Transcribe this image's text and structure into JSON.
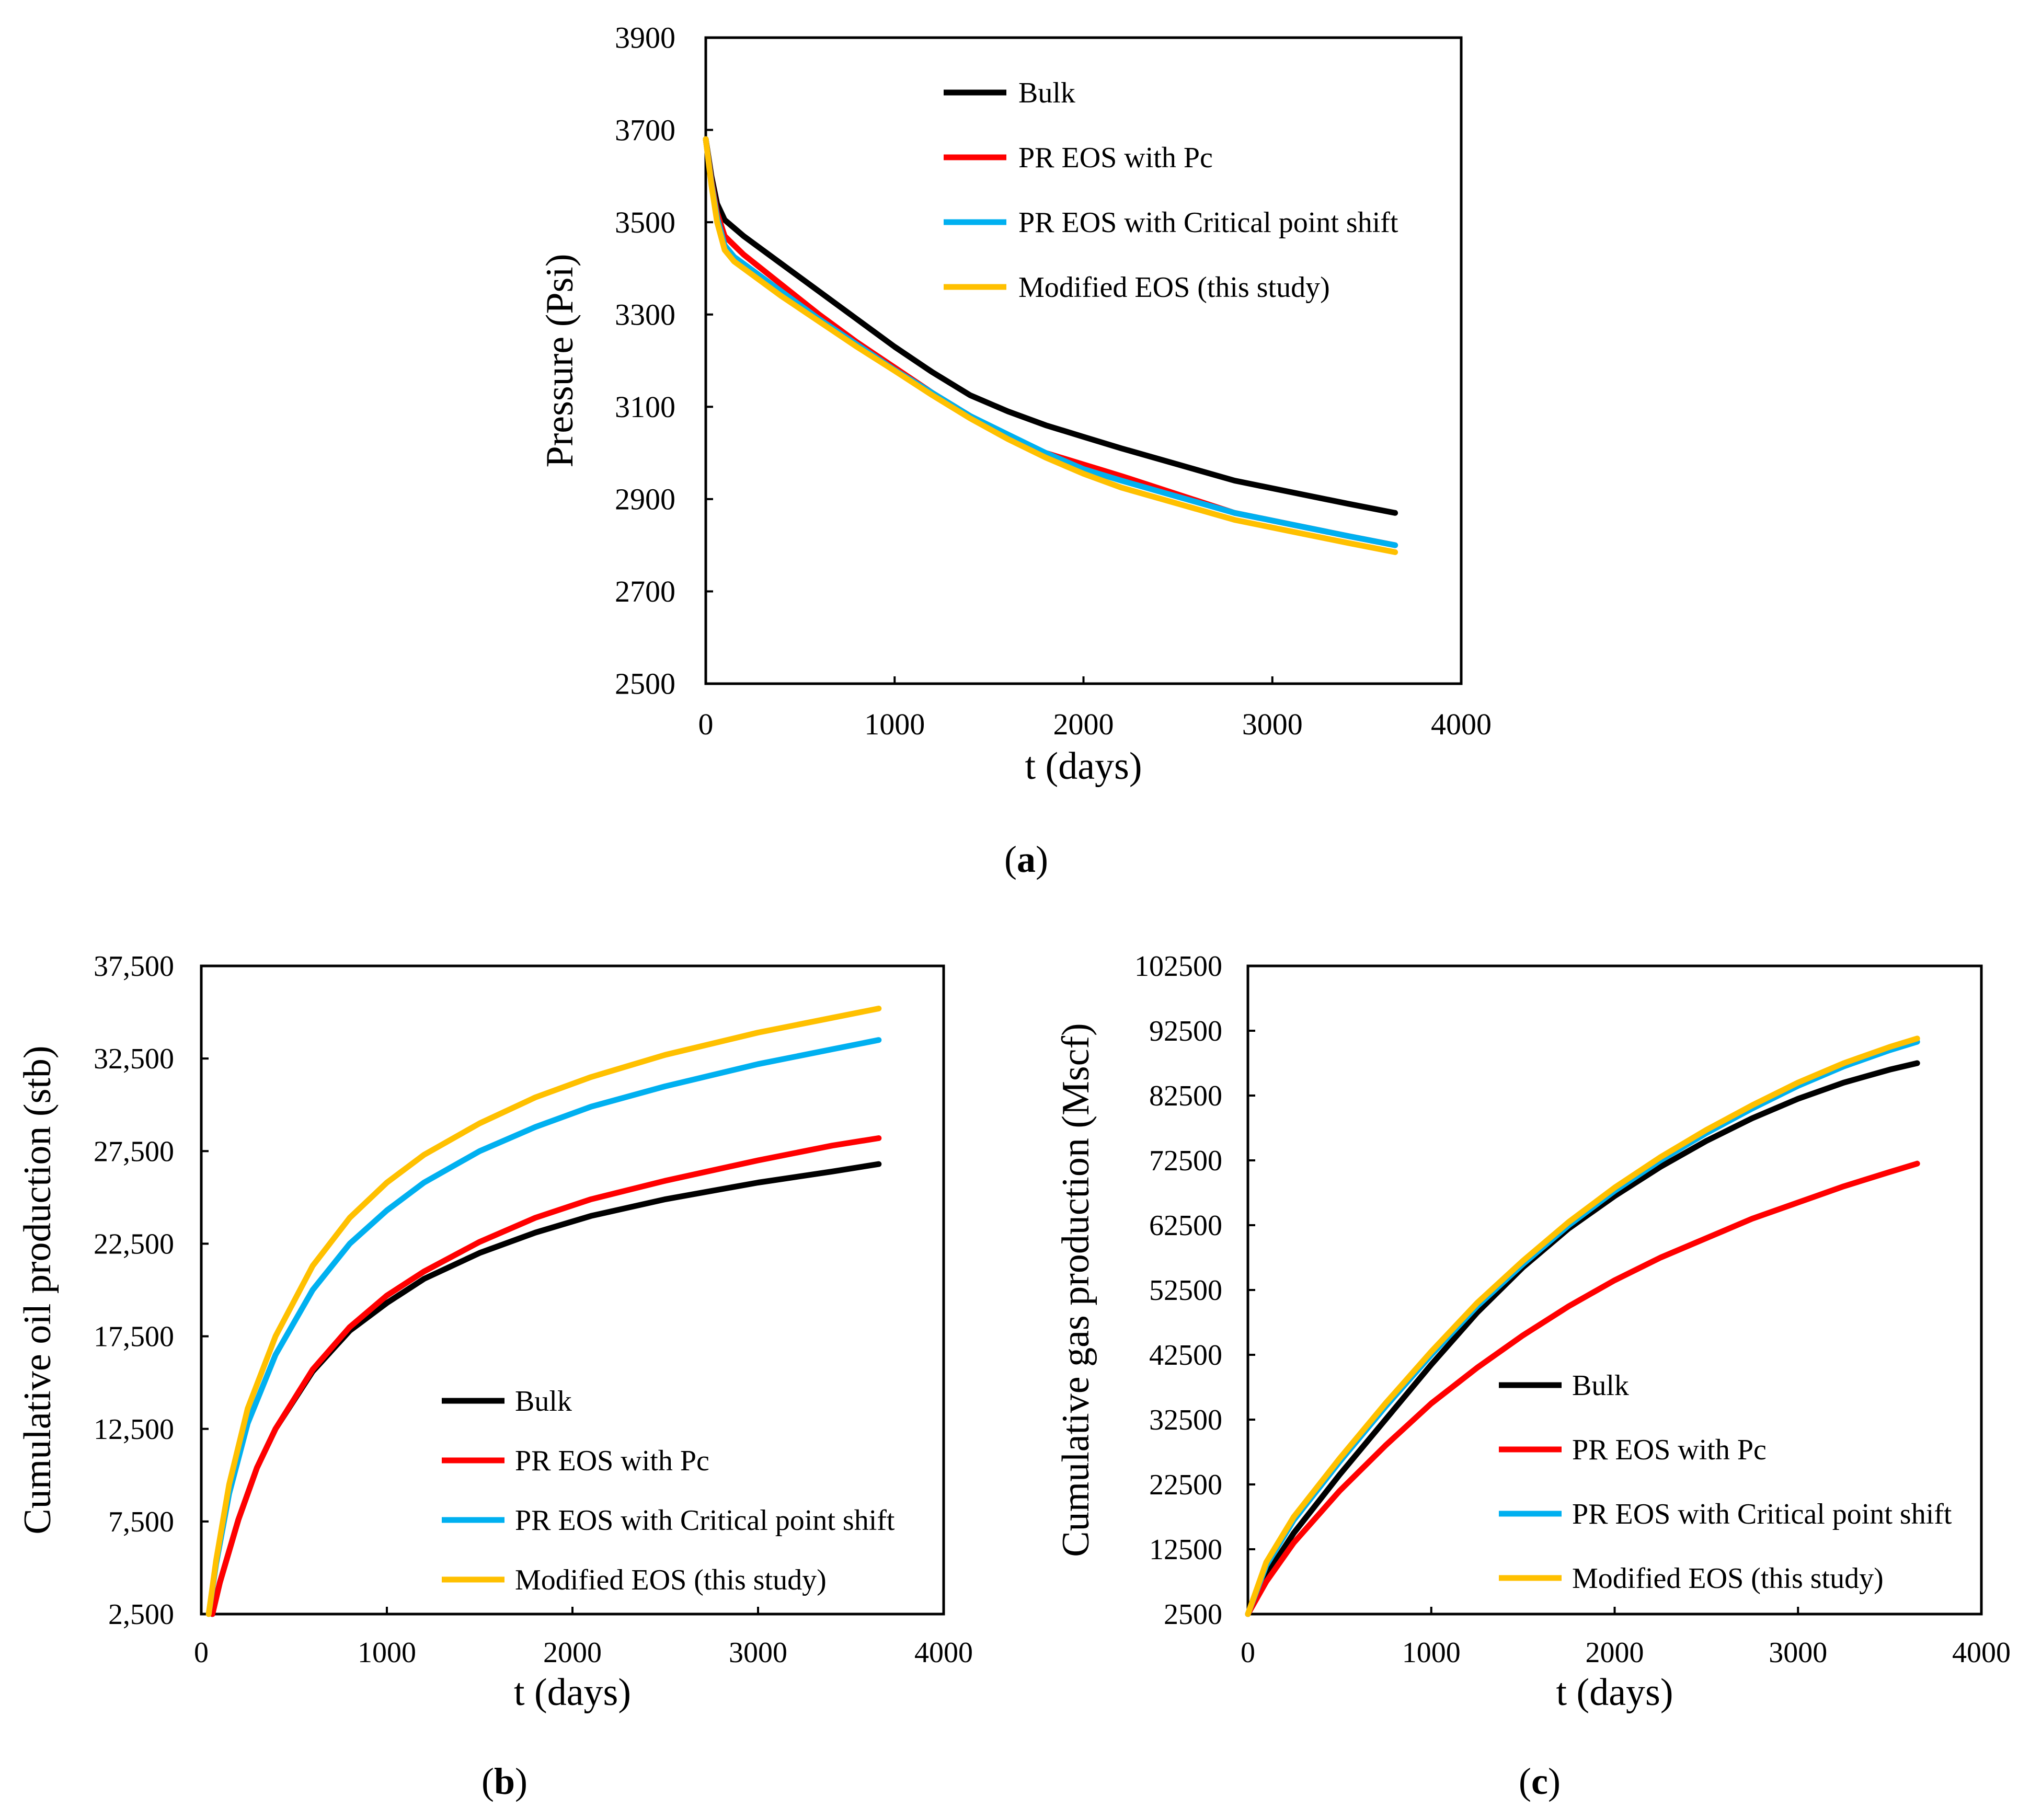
{
  "chart_data": [
    {
      "id": "a",
      "type": "line",
      "panel_label": "a",
      "xlabel": "t (days)",
      "ylabel": "Pressure (Psi)",
      "xlim": [
        0,
        4000
      ],
      "ylim": [
        2500,
        3900
      ],
      "xticks": [
        0,
        1000,
        2000,
        3000,
        4000
      ],
      "yticks": [
        2500,
        2700,
        2900,
        3100,
        3300,
        3500,
        3700,
        3900
      ],
      "xtick_labels": [
        "0",
        "1000",
        "2000",
        "3000",
        "4000"
      ],
      "ytick_labels": [
        "2500",
        "2700",
        "2900",
        "3100",
        "3300",
        "3500",
        "3700",
        "3900"
      ],
      "legend": "top-right",
      "series": [
        {
          "name": "Bulk",
          "color": "#000000",
          "x": [
            0,
            30,
            60,
            100,
            200,
            400,
            600,
            800,
            1000,
            1200,
            1400,
            1600,
            1800,
            2000,
            2200,
            2500,
            2800,
            3100,
            3400,
            3650
          ],
          "y": [
            3680,
            3600,
            3540,
            3505,
            3470,
            3410,
            3350,
            3290,
            3230,
            3175,
            3125,
            3090,
            3060,
            3035,
            3010,
            2975,
            2940,
            2915,
            2890,
            2870
          ]
        },
        {
          "name": "PR EOS with Pc",
          "color": "#ff0000",
          "x": [
            0,
            30,
            60,
            100,
            150,
            200,
            400,
            600,
            800,
            1000,
            1200,
            1400,
            1600,
            1800,
            2000,
            2200,
            2500,
            2800,
            3100,
            3400,
            3650
          ],
          "y": [
            3680,
            3590,
            3520,
            3470,
            3450,
            3430,
            3365,
            3300,
            3240,
            3185,
            3130,
            3080,
            3035,
            3000,
            2975,
            2950,
            2910,
            2870,
            2845,
            2820,
            2800
          ]
        },
        {
          "name": "PR EOS with Critical point shift",
          "color": "#00b0f0",
          "x": [
            0,
            30,
            60,
            100,
            150,
            200,
            400,
            600,
            800,
            1000,
            1200,
            1400,
            1600,
            1800,
            2000,
            2200,
            2500,
            2800,
            3100,
            3400,
            3650
          ],
          "y": [
            3680,
            3585,
            3510,
            3450,
            3425,
            3410,
            3350,
            3290,
            3235,
            3180,
            3130,
            3080,
            3040,
            3000,
            2965,
            2940,
            2905,
            2870,
            2845,
            2820,
            2800
          ]
        },
        {
          "name": "Modified EOS (this study)",
          "color": "#ffc000",
          "x": [
            0,
            30,
            60,
            100,
            150,
            200,
            400,
            600,
            800,
            1000,
            1200,
            1400,
            1600,
            1800,
            2000,
            2200,
            2500,
            2800,
            3100,
            3400,
            3650
          ],
          "y": [
            3680,
            3580,
            3500,
            3440,
            3415,
            3400,
            3340,
            3285,
            3230,
            3178,
            3125,
            3075,
            3030,
            2990,
            2955,
            2925,
            2890,
            2855,
            2830,
            2805,
            2785
          ]
        }
      ]
    },
    {
      "id": "b",
      "type": "line",
      "panel_label": "b",
      "xlabel": "t (days)",
      "ylabel": "Cumulative oil production (stb)",
      "xlim": [
        0,
        4000
      ],
      "ylim": [
        2500,
        37500
      ],
      "xticks": [
        0,
        1000,
        2000,
        3000,
        4000
      ],
      "yticks": [
        2500,
        7500,
        12500,
        17500,
        22500,
        27500,
        32500,
        37500
      ],
      "xtick_labels": [
        "0",
        "1000",
        "2000",
        "3000",
        "4000"
      ],
      "ytick_labels": [
        "2,500",
        "7,500",
        "12,500",
        "17,500",
        "22,500",
        "27,500",
        "32,500",
        "37,500"
      ],
      "legend": "center-right",
      "series": [
        {
          "name": "Bulk",
          "color": "#000000",
          "x": [
            60,
            100,
            200,
            300,
            400,
            600,
            800,
            1000,
            1200,
            1500,
            1800,
            2100,
            2500,
            3000,
            3400,
            3650
          ],
          "y": [
            2500,
            4200,
            7600,
            10400,
            12500,
            15600,
            17800,
            19300,
            20600,
            22000,
            23100,
            24000,
            24900,
            25800,
            26400,
            26800
          ]
        },
        {
          "name": "PR EOS with Pc",
          "color": "#ff0000",
          "x": [
            60,
            100,
            200,
            300,
            400,
            600,
            800,
            1000,
            1200,
            1500,
            1800,
            2100,
            2500,
            3000,
            3400,
            3650
          ],
          "y": [
            2500,
            4200,
            7600,
            10400,
            12500,
            15700,
            18000,
            19700,
            21000,
            22600,
            23900,
            24900,
            25900,
            27000,
            27800,
            28200
          ]
        },
        {
          "name": "PR EOS with Critical point shift",
          "color": "#00b0f0",
          "x": [
            40,
            80,
            150,
            250,
            400,
            600,
            800,
            1000,
            1200,
            1500,
            1800,
            2100,
            2500,
            3000,
            3400,
            3650
          ],
          "y": [
            2500,
            5200,
            9000,
            12800,
            16500,
            20000,
            22500,
            24300,
            25800,
            27500,
            28800,
            29900,
            31000,
            32200,
            33000,
            33500
          ]
        },
        {
          "name": "Modified EOS (this study)",
          "color": "#ffc000",
          "x": [
            40,
            80,
            150,
            250,
            400,
            600,
            800,
            1000,
            1200,
            1500,
            1800,
            2100,
            2500,
            3000,
            3400,
            3650
          ],
          "y": [
            2500,
            5400,
            9500,
            13600,
            17500,
            21300,
            23900,
            25800,
            27300,
            29000,
            30400,
            31500,
            32700,
            33900,
            34700,
            35200
          ]
        }
      ]
    },
    {
      "id": "c",
      "type": "line",
      "panel_label": "c",
      "xlabel": "t (days)",
      "ylabel": "Cumulative gas production (Mscf)",
      "xlim": [
        0,
        4000
      ],
      "ylim": [
        2500,
        102500
      ],
      "xticks": [
        0,
        1000,
        2000,
        3000,
        4000
      ],
      "yticks": [
        2500,
        12500,
        22500,
        32500,
        42500,
        52500,
        62500,
        72500,
        82500,
        92500,
        102500
      ],
      "xtick_labels": [
        "0",
        "1000",
        "2000",
        "3000",
        "4000"
      ],
      "ytick_labels": [
        "2500",
        "12500",
        "22500",
        "32500",
        "42500",
        "52500",
        "62500",
        "72500",
        "82500",
        "92500",
        "102500"
      ],
      "legend": "center-right",
      "series": [
        {
          "name": "Bulk",
          "color": "#000000",
          "x": [
            0,
            100,
            250,
            500,
            750,
            1000,
            1250,
            1500,
            1750,
            2000,
            2250,
            2500,
            2750,
            3000,
            3250,
            3500,
            3650
          ],
          "y": [
            2500,
            8500,
            15000,
            24000,
            32500,
            41000,
            49000,
            56000,
            62000,
            67000,
            71500,
            75500,
            79000,
            82000,
            84500,
            86500,
            87500
          ]
        },
        {
          "name": "PR EOS with Pc",
          "color": "#ff0000",
          "x": [
            0,
            100,
            250,
            500,
            750,
            1000,
            1250,
            1500,
            1750,
            2000,
            2250,
            2500,
            2750,
            3000,
            3250,
            3500,
            3650
          ],
          "y": [
            2500,
            7500,
            13500,
            21500,
            28500,
            35000,
            40500,
            45500,
            50000,
            54000,
            57500,
            60500,
            63500,
            66000,
            68500,
            70700,
            72000
          ]
        },
        {
          "name": "PR EOS with Critical point shift",
          "color": "#00b0f0",
          "x": [
            0,
            100,
            250,
            500,
            750,
            1000,
            1250,
            1500,
            1750,
            2000,
            2250,
            2500,
            2750,
            3000,
            3250,
            3500,
            3650
          ],
          "y": [
            2500,
            10000,
            17000,
            26000,
            34500,
            42500,
            50000,
            56500,
            62500,
            67800,
            72500,
            76700,
            80500,
            84000,
            87000,
            89500,
            90800
          ]
        },
        {
          "name": "Modified EOS (this study)",
          "color": "#ffc000",
          "x": [
            0,
            100,
            250,
            500,
            750,
            1000,
            1250,
            1500,
            1750,
            2000,
            2250,
            2500,
            2750,
            3000,
            3250,
            3500,
            3650
          ],
          "y": [
            2500,
            10500,
            17500,
            26500,
            35000,
            43000,
            50500,
            57000,
            63000,
            68300,
            73000,
            77200,
            81000,
            84500,
            87500,
            90000,
            91300
          ]
        }
      ]
    }
  ]
}
